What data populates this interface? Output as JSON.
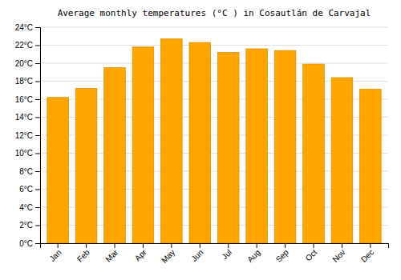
{
  "chart_data": {
    "type": "bar",
    "title": "Average monthly temperatures (°C ) in Cosautlán de Carvajal",
    "categories": [
      "Jan",
      "Feb",
      "Mar",
      "Apr",
      "May",
      "Jun",
      "Jul",
      "Aug",
      "Sep",
      "Oct",
      "Nov",
      "Dec"
    ],
    "values": [
      16.2,
      17.2,
      19.5,
      21.8,
      22.7,
      22.3,
      21.2,
      21.6,
      21.4,
      19.9,
      18.4,
      17.1
    ],
    "color": "#FFA500",
    "ylim": [
      0,
      24
    ],
    "yticks": [
      {
        "value": 0,
        "label": "0°C"
      },
      {
        "value": 2,
        "label": "2°C"
      },
      {
        "value": 4,
        "label": "4°C"
      },
      {
        "value": 6,
        "label": "6°C"
      },
      {
        "value": 8,
        "label": "8°C"
      },
      {
        "value": 10,
        "label": "10°C"
      },
      {
        "value": 12,
        "label": "12°C"
      },
      {
        "value": 14,
        "label": "14°C"
      },
      {
        "value": 16,
        "label": "16°C"
      },
      {
        "value": 18,
        "label": "18°C"
      },
      {
        "value": 20,
        "label": "20°C"
      },
      {
        "value": 22,
        "label": "22°C"
      },
      {
        "value": 24,
        "label": "24°C"
      }
    ],
    "grid": true
  }
}
